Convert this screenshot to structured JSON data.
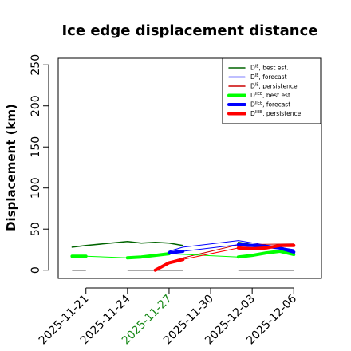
{
  "chart_data": {
    "type": "line",
    "title": "Ice edge displacement distance",
    "ylabel": "Displacement (km)",
    "xlabel": "",
    "ylim": [
      0,
      260
    ],
    "yticks": [
      0,
      50,
      100,
      150,
      200,
      250
    ],
    "xlim": [
      "2025-11-19",
      "2025-12-08"
    ],
    "xticks": [
      {
        "date": "2025-11-21",
        "color": "#000000"
      },
      {
        "date": "2025-11-24",
        "color": "#000000"
      },
      {
        "date": "2025-11-27",
        "color": "#1a8a1a"
      },
      {
        "date": "2025-11-30",
        "color": "#000000"
      },
      {
        "date": "2025-12-03",
        "color": "#000000"
      },
      {
        "date": "2025-12-06",
        "color": "#000000"
      }
    ],
    "grid": false,
    "legend": {
      "position": "top-right",
      "entries": [
        {
          "label": "D",
          "sup": "IE",
          "rest": ", best est.",
          "color": "#006400",
          "width": 1.5
        },
        {
          "label": "D",
          "sup": "IE",
          "rest": ", forecast",
          "color": "#0000ff",
          "width": 1.5
        },
        {
          "label": "D",
          "sup": "IE",
          "rest": ", persistence",
          "color": "#cc0000",
          "width": 1.5
        },
        {
          "label": "D",
          "sup": "IIEE",
          "rest": ", best est.",
          "color": "#00ff00",
          "width": 4
        },
        {
          "label": "D",
          "sup": "IIEE",
          "rest": ", forecast",
          "color": "#0000ff",
          "width": 4
        },
        {
          "label": "D",
          "sup": "IIEE",
          "rest": ", persistence",
          "color": "#ff0000",
          "width": 4
        }
      ]
    },
    "series": [
      {
        "kind": "DIE-best",
        "color": "#006400",
        "width": 1.5,
        "points": [
          [
            "2025-11-20",
            28
          ],
          [
            "2025-11-21",
            30
          ],
          [
            "2025-11-24",
            35
          ],
          [
            "2025-11-25",
            33
          ],
          [
            "2025-11-26",
            34
          ],
          [
            "2025-11-27",
            33
          ],
          [
            "2025-11-28",
            30
          ]
        ]
      },
      {
        "kind": "DIE-best",
        "color": "#006400",
        "width": 1.5,
        "points": [
          [
            "2025-12-02",
            34
          ],
          [
            "2025-12-03",
            31
          ],
          [
            "2025-12-04",
            29
          ],
          [
            "2025-12-05",
            27
          ],
          [
            "2025-12-06",
            22
          ]
        ]
      },
      {
        "kind": "DIE-forecast",
        "color": "#0000ff",
        "width": 1,
        "points": [
          [
            "2025-11-27",
            23
          ],
          [
            "2025-11-28",
            28
          ],
          [
            "2025-12-02",
            36
          ],
          [
            "2025-12-06",
            25
          ]
        ]
      },
      {
        "kind": "DIE-persistence",
        "color": "#cc0000",
        "width": 1,
        "points": [
          [
            "2025-11-26",
            1
          ],
          [
            "2025-11-27",
            10
          ],
          [
            "2025-11-28",
            15
          ],
          [
            "2025-12-02",
            31
          ],
          [
            "2025-12-06",
            32
          ]
        ]
      },
      {
        "kind": "DIIEE-best",
        "color": "#00ff00",
        "width": 4,
        "points": [
          [
            "2025-11-20",
            17
          ],
          [
            "2025-11-21",
            17
          ]
        ]
      },
      {
        "kind": "DIIEE-best",
        "color": "#00ff00",
        "width": 4,
        "points": [
          [
            "2025-11-24",
            15
          ],
          [
            "2025-11-25",
            16
          ],
          [
            "2025-11-26",
            18
          ],
          [
            "2025-11-27",
            20
          ]
        ]
      },
      {
        "kind": "DIIEE-best",
        "color": "#00ff00",
        "width": 4,
        "points": [
          [
            "2025-12-02",
            16
          ],
          [
            "2025-12-03",
            18
          ],
          [
            "2025-12-04",
            21
          ],
          [
            "2025-12-05",
            23
          ],
          [
            "2025-12-06",
            19
          ]
        ]
      },
      {
        "kind": "DIIEE-best",
        "color": "#00ff00",
        "width": 1,
        "points": [
          [
            "2025-11-21",
            17
          ],
          [
            "2025-11-24",
            15
          ]
        ]
      },
      {
        "kind": "DIIEE-best",
        "color": "#00ff00",
        "width": 1,
        "points": [
          [
            "2025-11-27",
            20
          ],
          [
            "2025-12-02",
            16
          ]
        ]
      },
      {
        "kind": "DIIEE-forecast",
        "color": "#0000ff",
        "width": 4,
        "points": [
          [
            "2025-11-27",
            21
          ],
          [
            "2025-11-28",
            23
          ]
        ]
      },
      {
        "kind": "DIIEE-forecast",
        "color": "#0000ff",
        "width": 4,
        "points": [
          [
            "2025-12-02",
            31
          ],
          [
            "2025-12-03",
            30
          ],
          [
            "2025-12-04",
            29
          ],
          [
            "2025-12-05",
            27
          ],
          [
            "2025-12-06",
            22
          ]
        ]
      },
      {
        "kind": "DIIEE-forecast",
        "color": "#0000ff",
        "width": 1,
        "points": [
          [
            "2025-11-28",
            23
          ],
          [
            "2025-12-02",
            31
          ]
        ]
      },
      {
        "kind": "DIIEE-persistence",
        "color": "#ff0000",
        "width": 4,
        "points": [
          [
            "2025-11-26",
            0
          ],
          [
            "2025-11-27",
            9
          ],
          [
            "2025-11-28",
            13
          ]
        ]
      },
      {
        "kind": "DIIEE-persistence",
        "color": "#ff0000",
        "width": 4,
        "points": [
          [
            "2025-12-02",
            27
          ],
          [
            "2025-12-03",
            26
          ],
          [
            "2025-12-04",
            27
          ],
          [
            "2025-12-05",
            30
          ],
          [
            "2025-12-06",
            30
          ]
        ]
      },
      {
        "kind": "DIIEE-persistence",
        "color": "#ff0000",
        "width": 1,
        "points": [
          [
            "2025-11-28",
            13
          ],
          [
            "2025-12-02",
            27
          ]
        ]
      }
    ],
    "baselines": [
      {
        "color": "#555555",
        "y": 0,
        "from": "2025-11-20",
        "to": "2025-11-21"
      },
      {
        "color": "#555555",
        "y": 0,
        "from": "2025-11-24",
        "to": "2025-11-28"
      },
      {
        "color": "#555555",
        "y": 0,
        "from": "2025-12-02",
        "to": "2025-12-06"
      }
    ]
  }
}
